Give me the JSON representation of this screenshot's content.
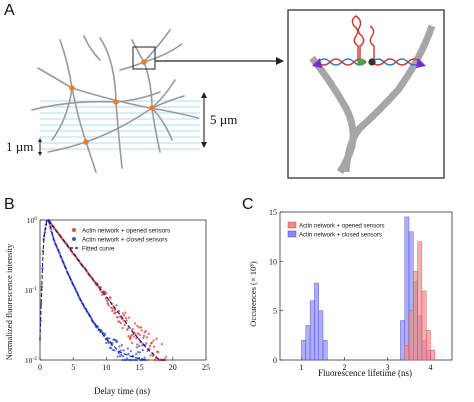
{
  "panels": {
    "a": {
      "letter": "A",
      "scale_vertical": "5 µm",
      "scale_thickness": "1 µm"
    },
    "b": {
      "letter": "B",
      "xlabel": "Delay time (ns)",
      "ylabel": "Normalized fluorescence intensity",
      "legend": [
        "Actin network + opened sensors",
        "Actin network + closed sensors",
        "Fitted curve"
      ]
    },
    "c": {
      "letter": "C",
      "xlabel": "Fluorescence lifetime (ns)",
      "ylabel": "Occurences (× 10³)",
      "legend": [
        "Actin network + opened sensors",
        "Actin network + closed sensors"
      ]
    }
  },
  "colors": {
    "opened": "#e0493a",
    "closed": "#3b57d6",
    "fit": "#1a1a8c",
    "hist_opened": "#f08b8b",
    "hist_closed": "#8b8bf0",
    "filament": "#999999",
    "node": "#f07d22"
  },
  "chart_data": [
    {
      "type": "line",
      "xlabel": "Delay time (ns)",
      "ylabel": "Normalized fluorescence intensity",
      "xlim": [
        0,
        25
      ],
      "ylim": [
        0.01,
        1
      ],
      "yscale": "log",
      "xticks": [
        0,
        5,
        10,
        15,
        20,
        25
      ],
      "yticks": [
        "10^0",
        "10^-1",
        "10^-2"
      ],
      "legend_position": "top-right",
      "series": [
        {
          "name": "Actin network + opened sensors",
          "marker": "o",
          "x": [
            0.0,
            0.5,
            1.0,
            1.3,
            2,
            4,
            6,
            8,
            10,
            12,
            14,
            16,
            18,
            19
          ],
          "y": [
            0.02,
            0.5,
            0.97,
            1.0,
            0.8,
            0.45,
            0.25,
            0.14,
            0.08,
            0.045,
            0.025,
            0.015,
            0.01,
            0.008
          ]
        },
        {
          "name": "Actin network + closed sensors",
          "marker": "o",
          "x": [
            0.0,
            0.5,
            1.0,
            1.3,
            2,
            4,
            6,
            8,
            10,
            12,
            14,
            16
          ],
          "y": [
            0.02,
            0.5,
            0.97,
            1.0,
            0.55,
            0.19,
            0.075,
            0.035,
            0.02,
            0.013,
            0.011,
            0.01
          ]
        },
        {
          "name": "Fitted curve",
          "style": "dashed",
          "x": [
            1.3,
            2,
            4,
            6,
            8,
            10,
            12,
            14,
            16,
            18,
            19
          ],
          "y": [
            1.0,
            0.8,
            0.45,
            0.25,
            0.14,
            0.08,
            0.045,
            0.025,
            0.015,
            0.01,
            0.008
          ]
        }
      ]
    },
    {
      "type": "bar",
      "xlabel": "Fluorescence lifetime (ns)",
      "ylabel": "Occurences (× 10³)",
      "xlim": [
        0.5,
        4.5
      ],
      "ylim": [
        0,
        15
      ],
      "xticks": [
        1,
        2,
        3,
        4
      ],
      "yticks": [
        0,
        5,
        10,
        15
      ],
      "legend_position": "top-right",
      "bin_width": 0.1,
      "series": [
        {
          "name": "Actin network + opened sensors",
          "bins": [
            3.45,
            3.55,
            3.65,
            3.75,
            3.85,
            3.95,
            4.05
          ],
          "values": [
            1.5,
            5,
            9,
            12,
            7,
            3,
            1
          ]
        },
        {
          "name": "Actin network + closed sensors",
          "bins": [
            1.05,
            1.15,
            1.25,
            1.35,
            1.45,
            1.55,
            3.35,
            3.45,
            3.55,
            3.65,
            3.75,
            3.85,
            3.95
          ],
          "values": [
            2,
            3.5,
            6,
            7.8,
            5,
            2,
            4,
            14.5,
            13,
            8,
            4.5,
            2,
            1
          ]
        }
      ]
    }
  ]
}
